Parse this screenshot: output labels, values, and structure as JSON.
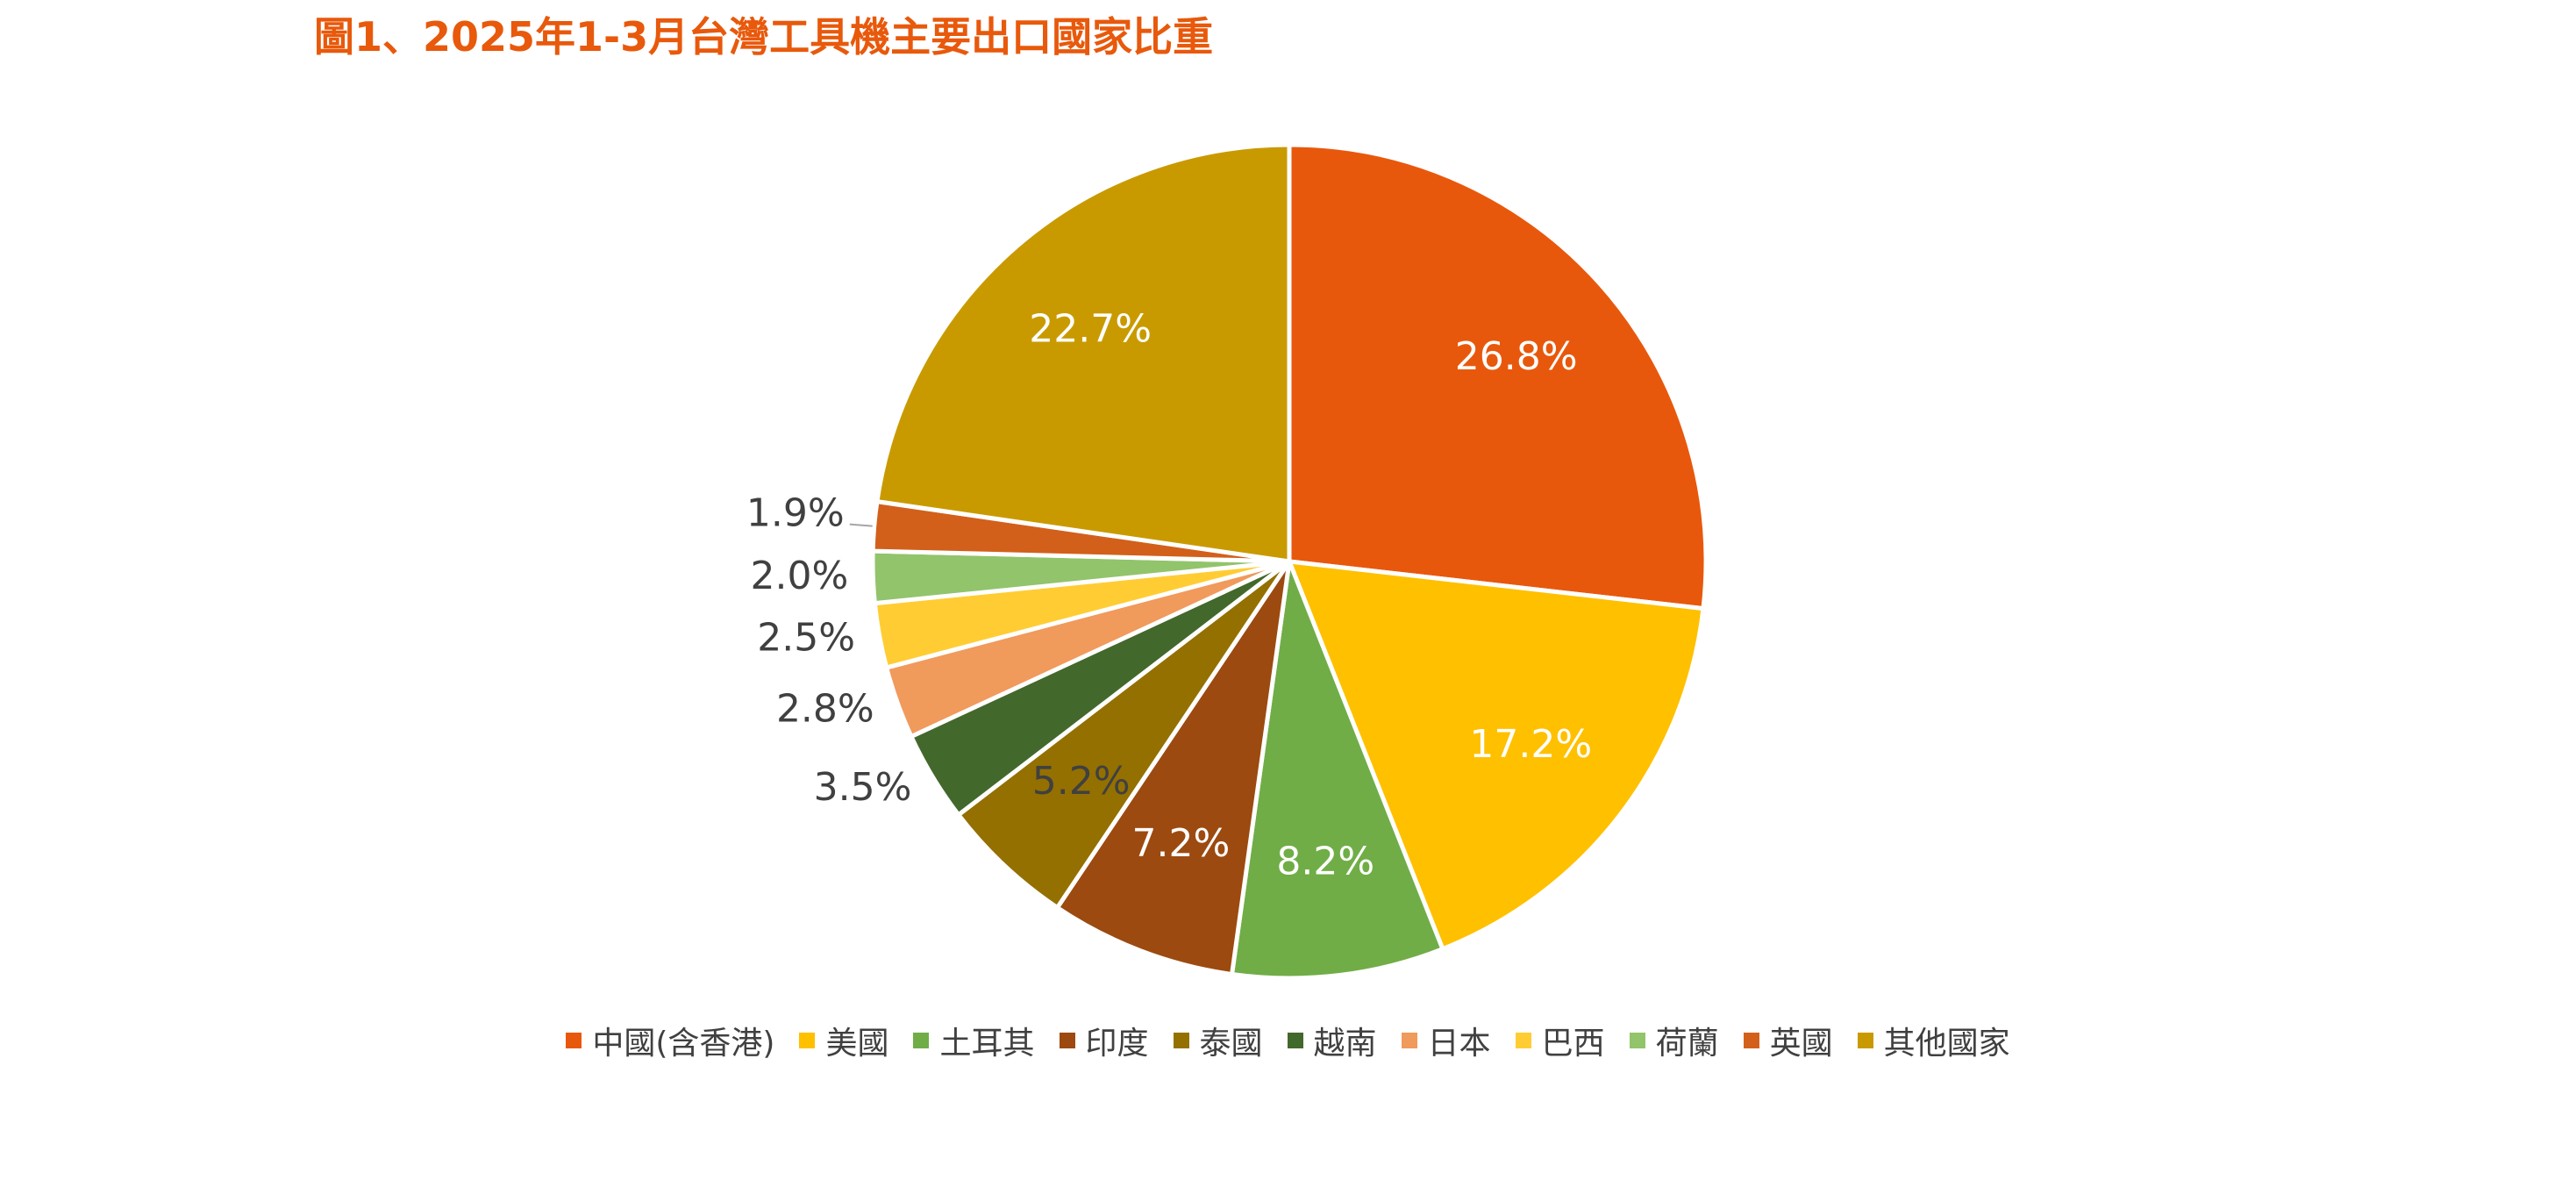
{
  "chart_data": {
    "type": "pie",
    "title": "圖1、2025年1-3月台灣工具機主要出口國家比重",
    "categories": [
      "中國(含香港)",
      "美國",
      "土耳其",
      "印度",
      "泰國",
      "越南",
      "日本",
      "巴西",
      "荷蘭",
      "英國",
      "其他國家"
    ],
    "values": [
      26.8,
      17.2,
      8.2,
      7.2,
      5.2,
      3.5,
      2.8,
      2.5,
      2.0,
      1.9,
      22.7
    ],
    "labels": [
      "26.8%",
      "17.2%",
      "8.2%",
      "7.2%",
      "5.2%",
      "3.5%",
      "2.8%",
      "2.5%",
      "2.0%",
      "1.9%",
      "22.7%"
    ],
    "colors": [
      "#e8580c",
      "#ffc000",
      "#70ad47",
      "#9c4a10",
      "#947000",
      "#43682b",
      "#f09a5c",
      "#ffcd33",
      "#92c46b",
      "#d2601a",
      "#c99a00"
    ],
    "label_colors": [
      "#ffffff",
      "#ffffff",
      "#ffffff",
      "#ffffff",
      "#404040",
      "#404040",
      "#404040",
      "#404040",
      "#404040",
      "#404040",
      "#ffffff"
    ],
    "legend": "bottom",
    "start_angle_deg": 0,
    "direction": "clockwise"
  }
}
